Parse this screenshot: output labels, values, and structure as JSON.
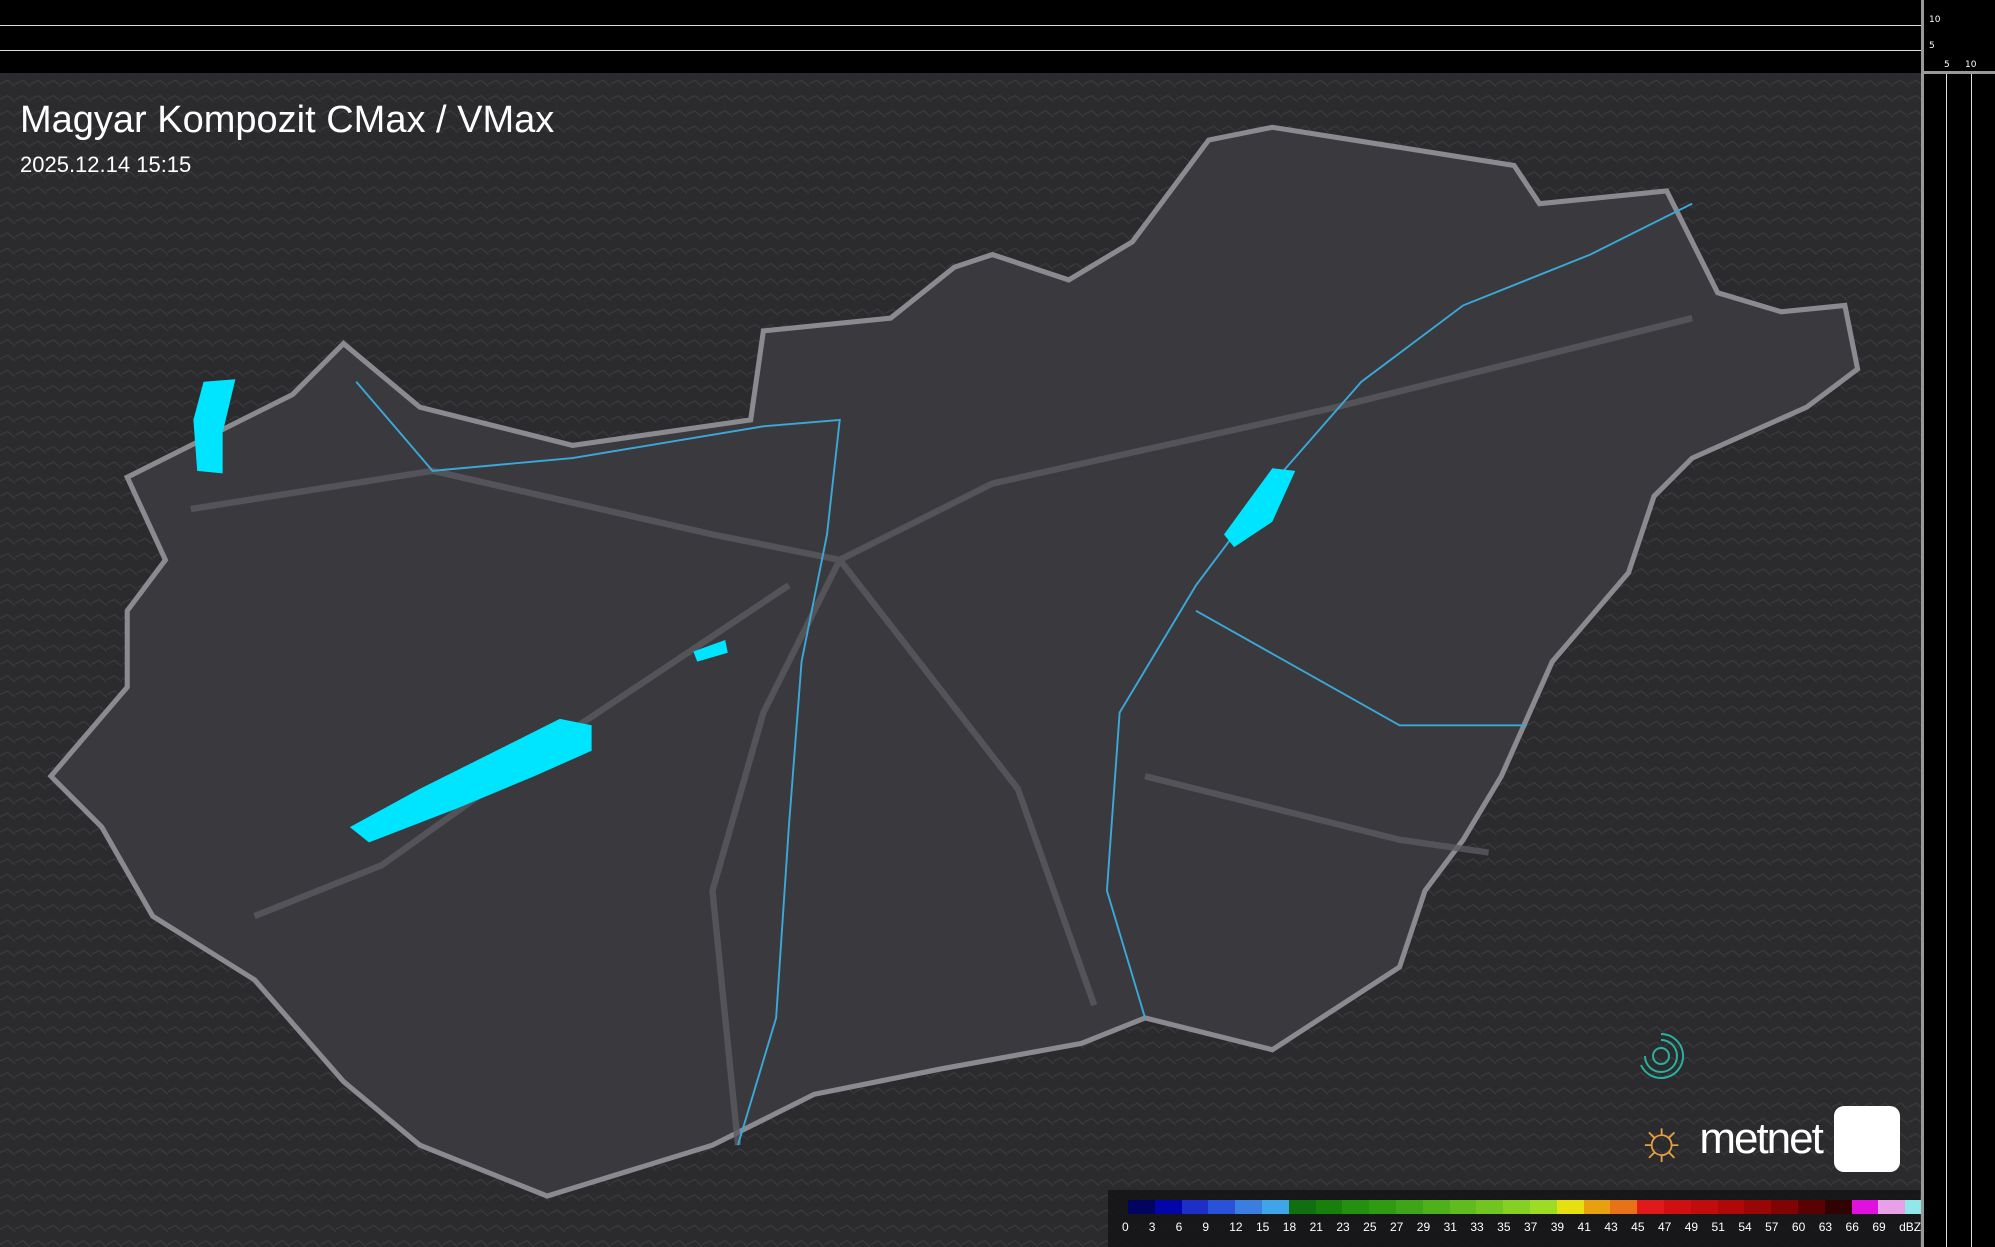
{
  "title": "Magyar Kompozit CMax / VMax",
  "timestamp": "2025.12.14 15:15",
  "scale": {
    "vertical_ticks": [
      "10",
      "5"
    ],
    "horizontal_ticks": [
      "5",
      "10"
    ]
  },
  "logo": {
    "text": "metnet"
  },
  "legend": {
    "unit": "dBZ",
    "labels": [
      "0",
      "3",
      "6",
      "9",
      "12",
      "15",
      "18",
      "21",
      "23",
      "25",
      "27",
      "29",
      "31",
      "33",
      "35",
      "37",
      "39",
      "41",
      "43",
      "45",
      "47",
      "49",
      "51",
      "54",
      "57",
      "60",
      "63",
      "66",
      "69"
    ],
    "colors": [
      "#020560",
      "#0206a8",
      "#1d2fc8",
      "#2a52d8",
      "#3a7fe0",
      "#3ea6e8",
      "#106f10",
      "#177f0a",
      "#23900f",
      "#2e9b12",
      "#3ea518",
      "#4eb01b",
      "#5fbb1e",
      "#72c520",
      "#86d023",
      "#9cdc25",
      "#e6e010",
      "#e8a010",
      "#e87218",
      "#e01a1a",
      "#d01010",
      "#c00c0c",
      "#b00808",
      "#980606",
      "#800404",
      "#5a0202",
      "#300202",
      "#e010e0",
      "#e8a0e8",
      "#90e8e8"
    ],
    "accent_colors": {
      "water": "#00e5ff",
      "rivers": "#3aa8d8",
      "border": "#8a8a90"
    }
  }
}
